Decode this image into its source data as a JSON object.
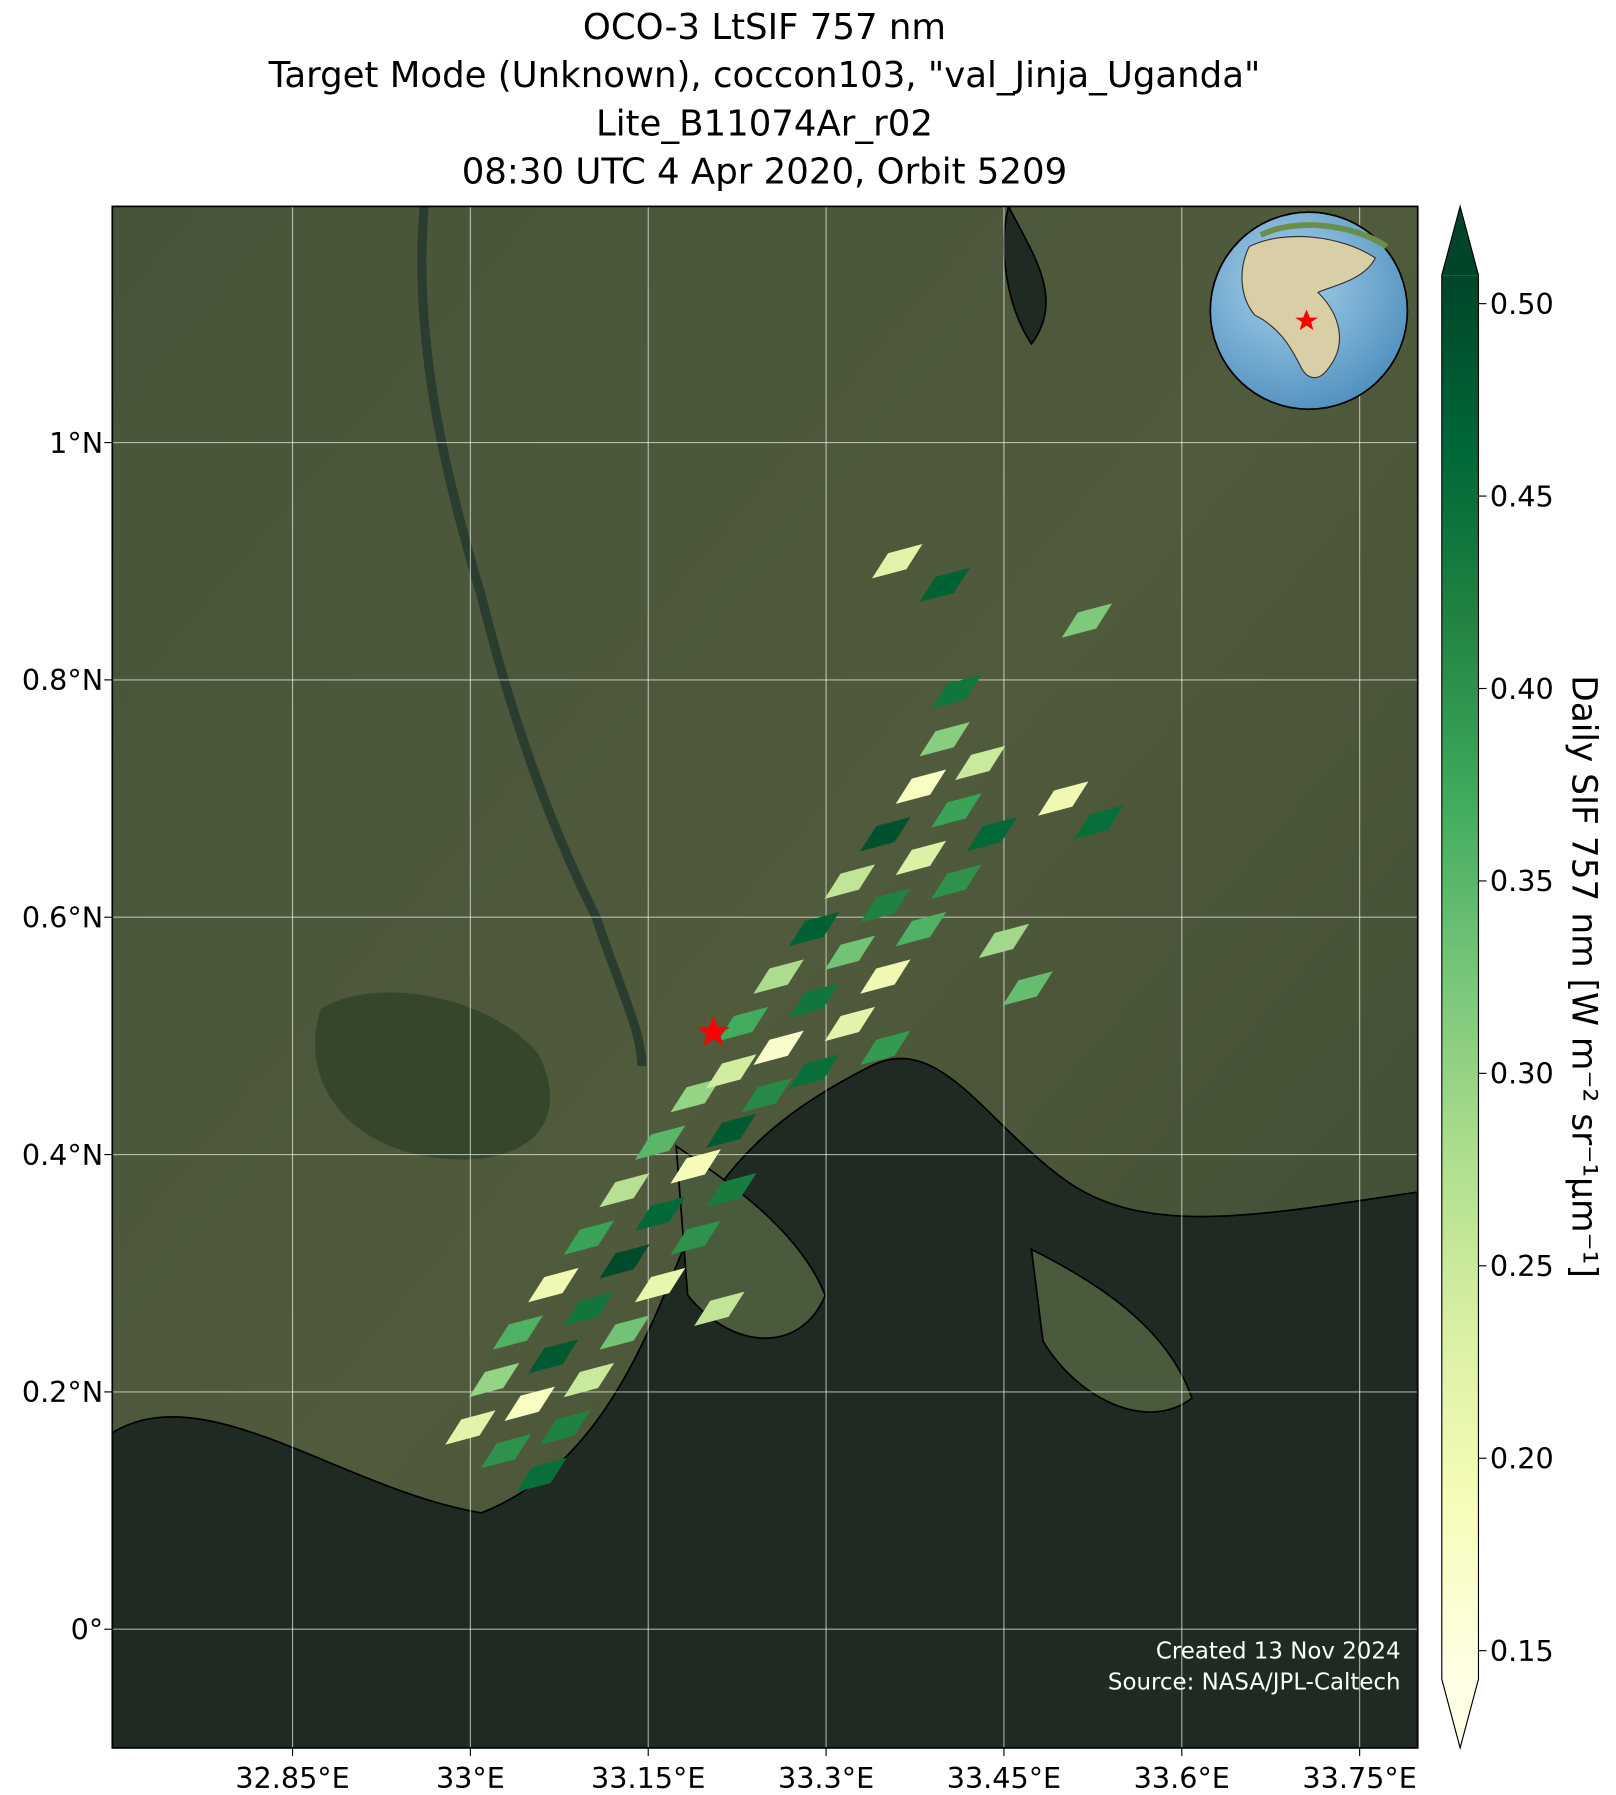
{
  "chart_data": {
    "type": "map",
    "title_lines": [
      "OCO-3 LtSIF 757 nm",
      "Target Mode (Unknown), coccon103, \"val_Jinja_Uganda\"",
      "Lite_B11074Ar_r02",
      "08:30 UTC 4 Apr 2020, Orbit 5209"
    ],
    "xlim": [
      32.698,
      33.799
    ],
    "ylim": [
      -0.1,
      1.199
    ],
    "xticks": [
      {
        "value": 32.85,
        "label": "32.85°E"
      },
      {
        "value": 33.0,
        "label": "33°E"
      },
      {
        "value": 33.15,
        "label": "33.15°E"
      },
      {
        "value": 33.3,
        "label": "33.3°E"
      },
      {
        "value": 33.45,
        "label": "33.45°E"
      },
      {
        "value": 33.6,
        "label": "33.6°E"
      },
      {
        "value": 33.75,
        "label": "33.75°E"
      }
    ],
    "yticks": [
      {
        "value": 0,
        "label": "0°"
      },
      {
        "value": 0.2,
        "label": "0.2°N"
      },
      {
        "value": 0.4,
        "label": "0.4°N"
      },
      {
        "value": 0.6,
        "label": "0.6°N"
      },
      {
        "value": 0.8,
        "label": "0.8°N"
      },
      {
        "value": 1,
        "label": "1°N"
      }
    ],
    "grid": true,
    "colormap": "YlGn",
    "clim": [
      0.1426,
      0.5074
    ],
    "cbar_ticks": [
      0.15,
      {
        "value": 0.2,
        "label": "0.20"
      },
      0.25,
      {
        "value": 0.3,
        "label": "0.30"
      },
      0.35,
      {
        "value": 0.4,
        "label": "0.40"
      },
      0.45,
      {
        "value": 0.5,
        "label": "0.50"
      }
    ],
    "cbar_label": "Daily SIF 757 nm [W m⁻² sr⁻¹μm⁻¹]",
    "site": {
      "lon": 33.205,
      "lat": 0.503,
      "color": "#ff0000"
    },
    "sif": {
      "lon": [
        33.0,
        33.03,
        33.06,
        33.02,
        33.05,
        33.08,
        33.04,
        33.07,
        33.1,
        33.07,
        33.1,
        33.13,
        33.1,
        33.13,
        33.16,
        33.13,
        33.16,
        33.19,
        33.22,
        33.16,
        33.19,
        33.22,
        33.19,
        33.22,
        33.25,
        33.23,
        33.26,
        33.29,
        33.26,
        33.29,
        33.32,
        33.35,
        33.29,
        33.32,
        33.35,
        33.32,
        33.35,
        33.38,
        33.35,
        33.38,
        33.41,
        33.38,
        33.41,
        33.44,
        33.4,
        33.43,
        33.41,
        33.36,
        33.4,
        33.52,
        33.5,
        33.53,
        33.45,
        33.47,
        33.21
      ],
      "lat": [
        0.17,
        0.15,
        0.13,
        0.21,
        0.19,
        0.17,
        0.25,
        0.23,
        0.21,
        0.29,
        0.27,
        0.25,
        0.33,
        0.31,
        0.29,
        0.37,
        0.35,
        0.33,
        0.37,
        0.41,
        0.39,
        0.42,
        0.45,
        0.47,
        0.45,
        0.51,
        0.49,
        0.47,
        0.55,
        0.53,
        0.51,
        0.49,
        0.59,
        0.57,
        0.55,
        0.63,
        0.61,
        0.59,
        0.67,
        0.65,
        0.63,
        0.71,
        0.69,
        0.67,
        0.75,
        0.73,
        0.79,
        0.9,
        0.88,
        0.85,
        0.7,
        0.68,
        0.58,
        0.54,
        0.27
      ],
      "values": [
        0.22,
        0.4,
        0.45,
        0.3,
        0.18,
        0.42,
        0.36,
        0.48,
        0.25,
        0.2,
        0.44,
        0.33,
        0.38,
        0.5,
        0.21,
        0.27,
        0.46,
        0.4,
        0.43,
        0.35,
        0.19,
        0.48,
        0.3,
        0.24,
        0.41,
        0.37,
        0.17,
        0.45,
        0.28,
        0.44,
        0.22,
        0.39,
        0.47,
        0.33,
        0.2,
        0.26,
        0.42,
        0.36,
        0.49,
        0.23,
        0.4,
        0.18,
        0.38,
        0.46,
        0.31,
        0.25,
        0.44,
        0.22,
        0.47,
        0.32,
        0.2,
        0.45,
        0.29,
        0.34,
        0.26
      ]
    },
    "annotations": [
      "Created 13 Nov 2024",
      "Source: NASA/JPL-Caltech"
    ]
  }
}
